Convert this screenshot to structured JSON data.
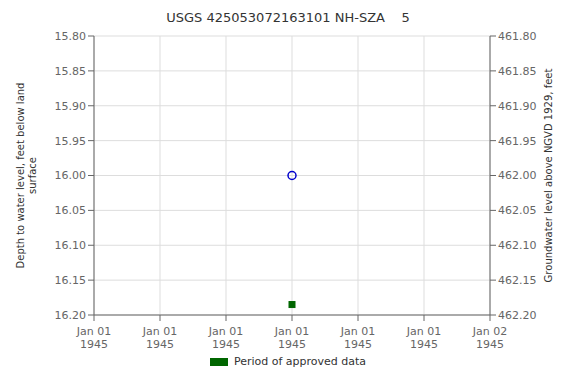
{
  "chart_data": {
    "type": "scatter",
    "title": "USGS 425053072163101 NH-SZA    5",
    "categories": [
      "Jan 01\n1945",
      "Jan 01\n1945",
      "Jan 01\n1945",
      "Jan 01\n1945",
      "Jan 01\n1945",
      "Jan 01\n1945",
      "Jan 02\n1945"
    ],
    "y_label": "Depth to water level, feet below land\nsurface",
    "y2_label": "Groundwater level above NGVD 1929, feet",
    "ylim": [
      16.2,
      15.8
    ],
    "yticks": [
      {
        "value": 15.8,
        "label": "15.80"
      },
      {
        "value": 15.85,
        "label": "15.85"
      },
      {
        "value": 15.9,
        "label": "15.90"
      },
      {
        "value": 15.95,
        "label": "15.95"
      },
      {
        "value": 16.0,
        "label": "16.00"
      },
      {
        "value": 16.05,
        "label": "16.05"
      },
      {
        "value": 16.1,
        "label": "16.10"
      },
      {
        "value": 16.15,
        "label": "16.15"
      },
      {
        "value": 16.2,
        "label": "16.20"
      }
    ],
    "y2lim": [
      462.2,
      461.8
    ],
    "y2ticks": [
      {
        "value": 462.2,
        "label": "462.20"
      },
      {
        "value": 462.15,
        "label": "462.15"
      },
      {
        "value": 462.1,
        "label": "462.10"
      },
      {
        "value": 462.05,
        "label": "462.05"
      },
      {
        "value": 462.0,
        "label": "462.00"
      },
      {
        "value": 461.95,
        "label": "461.95"
      },
      {
        "value": 461.9,
        "label": "461.90"
      },
      {
        "value": 461.85,
        "label": "461.85"
      },
      {
        "value": 461.8,
        "label": "461.80"
      }
    ],
    "series": [
      {
        "color": "#0000cc",
        "marker": "circle",
        "values": [
          null,
          null,
          null,
          16.0,
          null,
          null,
          null
        ]
      },
      {
        "name": "Period of approved data",
        "color": "#006600",
        "marker": "square",
        "values": [
          null,
          null,
          null,
          16.185,
          null,
          null,
          null
        ]
      }
    ],
    "grid": true,
    "legend": "bottom"
  }
}
